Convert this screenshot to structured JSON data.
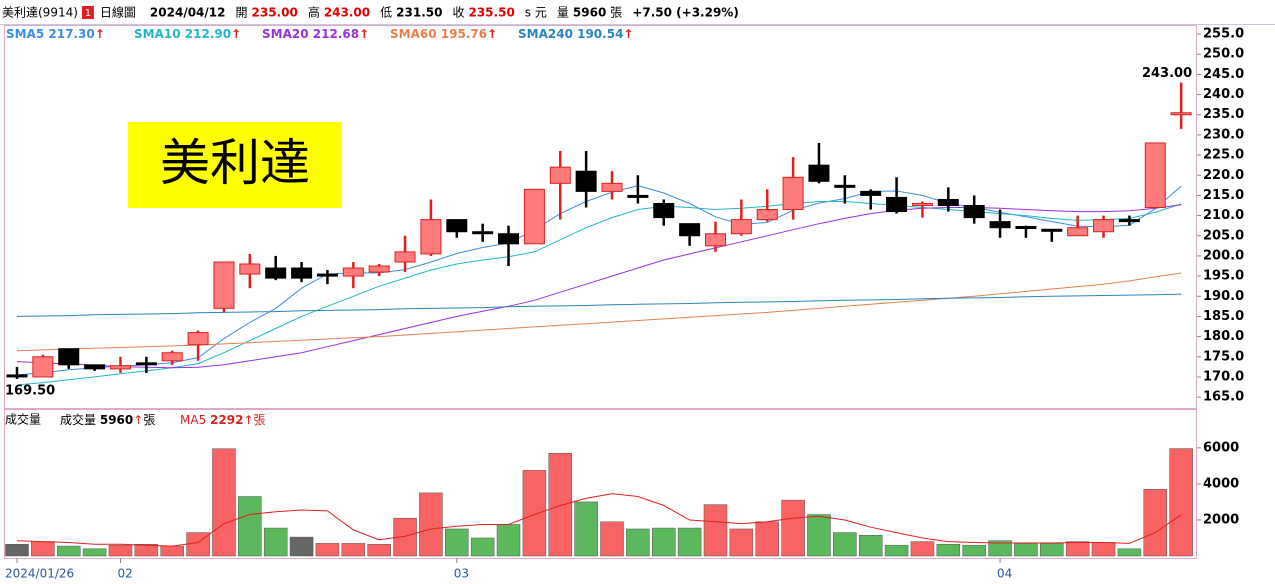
{
  "header": {
    "symbol": "美利達(9914)",
    "badge": "1",
    "view": "日線圖",
    "date": "2024/04/12",
    "fields": [
      {
        "label": "開",
        "value": "235.00",
        "color": "#e00000"
      },
      {
        "label": "高",
        "value": "243.00",
        "color": "#e00000"
      },
      {
        "label": "低",
        "value": "231.50",
        "color": "#000000"
      },
      {
        "label": "收",
        "value": "235.50",
        "color": "#e00000"
      }
    ],
    "unit": "s 元",
    "volume_label": "量",
    "volume": "5960",
    "volume_unit": "張",
    "change": "+7.50 (+3.29%)"
  },
  "stamp": "美利達",
  "chart_data": [
    {
      "type": "candlestick",
      "categories": [
        "2024/01/26",
        null,
        null,
        null,
        "02",
        null,
        null,
        null,
        null,
        null,
        null,
        null,
        null,
        null,
        null,
        null,
        null,
        "03",
        null,
        null,
        null,
        null,
        null,
        null,
        null,
        null,
        null,
        null,
        null,
        null,
        null,
        null,
        null,
        null,
        null,
        null,
        null,
        null,
        "04",
        null,
        null,
        null,
        null,
        null,
        null,
        null
      ],
      "open": [
        170.5,
        170,
        177,
        173,
        172,
        173.5,
        174,
        178,
        187,
        195.5,
        197,
        197,
        195.5,
        195,
        196,
        198.5,
        200.5,
        209,
        206,
        205.5,
        203,
        218,
        221,
        216,
        215,
        213,
        208,
        202.5,
        205.5,
        209,
        211.5,
        222.5,
        217.5,
        216,
        214.5,
        212.5,
        214,
        212.5,
        208.5,
        207.3,
        206.6,
        205,
        206,
        209,
        212,
        235
      ],
      "high": [
        172.5,
        175.5,
        177,
        173,
        175,
        175,
        176.5,
        181.5,
        198.5,
        200.5,
        200,
        198.5,
        196.5,
        198.5,
        198,
        205,
        214,
        209,
        208,
        207.5,
        216.5,
        226,
        226,
        221,
        220,
        214,
        208,
        208.5,
        214,
        216.5,
        224.5,
        228,
        220,
        216.5,
        219.5,
        213.5,
        217,
        215,
        211.5,
        207.5,
        206.6,
        210,
        210,
        210,
        228,
        243
      ],
      "low": [
        169.5,
        170,
        172,
        171.5,
        171,
        171,
        173,
        174,
        186,
        192,
        194,
        193.5,
        193,
        192,
        195,
        196,
        200,
        204.5,
        203.5,
        197.5,
        203,
        209,
        212,
        214,
        213,
        207.5,
        202.5,
        201,
        205,
        208.5,
        209,
        218,
        213,
        211.5,
        210.5,
        209.5,
        211,
        208,
        204.5,
        204.5,
        203.5,
        205,
        204.5,
        207.5,
        212,
        231.5
      ],
      "close": [
        170.5,
        175,
        173,
        172,
        172.8,
        173.5,
        176,
        181,
        198.5,
        198,
        194.5,
        194.5,
        195.5,
        197,
        197.5,
        201,
        209,
        206,
        205.5,
        203,
        216.5,
        222,
        216,
        218,
        214.5,
        209.5,
        205,
        205.5,
        209,
        211.5,
        219.5,
        218.5,
        217,
        215,
        211,
        213,
        212.5,
        209.5,
        207,
        206.8,
        206.5,
        207,
        209,
        208.5,
        228,
        235.5
      ],
      "up_color": "#ff7b7b",
      "up_stroke": "#e02020",
      "down_color": "#000000",
      "series": [
        {
          "name": "SMA5",
          "legend": "217.30",
          "trend": "↑",
          "color": "#3a8ee6",
          "values": [
            170.5,
            171.0,
            171.8,
            172.3,
            172.7,
            173.0,
            173.5,
            174.8,
            179.5,
            183.5,
            187.0,
            192.0,
            195.5,
            195.8,
            195.8,
            196.6,
            198.5,
            200.6,
            202.1,
            203.2,
            206.4,
            210.5,
            213.5,
            215.8,
            217.4,
            215.6,
            213.0,
            209.7,
            207.8,
            208.3,
            211.3,
            213.1,
            214.2,
            216.0,
            216.1,
            215.0,
            213.0,
            212.1,
            210.8,
            209.7,
            208.5,
            207.4,
            207.2,
            207.6,
            211.7,
            217.3
          ]
        },
        {
          "name": "SMA10",
          "legend": "212.90",
          "trend": "↑",
          "color": "#20b8c8",
          "values": [
            168.0,
            168.6,
            169.3,
            170.0,
            170.8,
            171.5,
            172.3,
            173.3,
            176.0,
            179.0,
            182.0,
            185.0,
            187.5,
            190.0,
            192.5,
            194.5,
            196.5,
            198.0,
            199.0,
            199.8,
            201.0,
            204.0,
            207.0,
            209.5,
            211.5,
            212.3,
            212.0,
            211.5,
            211.8,
            212.3,
            213.0,
            213.5,
            213.5,
            213.0,
            212.5,
            212.0,
            211.5,
            211.0,
            210.5,
            210.0,
            209.3,
            208.8,
            209.0,
            209.3,
            210.8,
            212.9
          ]
        },
        {
          "name": "SMA20",
          "legend": "212.68",
          "trend": "↑",
          "color": "#9a30e0",
          "values": [
            173.8,
            173.5,
            173.2,
            172.9,
            172.6,
            172.4,
            172.3,
            172.4,
            173.0,
            174.0,
            175.0,
            176.0,
            177.5,
            179.0,
            180.5,
            182.0,
            183.5,
            185.0,
            186.3,
            187.5,
            189.0,
            191.0,
            193.0,
            195.0,
            197.0,
            199.0,
            200.5,
            202.0,
            203.5,
            205.0,
            206.5,
            208.0,
            209.3,
            210.5,
            211.3,
            211.8,
            212.0,
            212.0,
            211.8,
            211.5,
            211.2,
            211.0,
            211.0,
            211.2,
            211.8,
            212.68
          ]
        },
        {
          "name": "SMA60",
          "legend": "195.76",
          "trend": "↑",
          "color": "#e8804a",
          "values": [
            176.5,
            176.7,
            176.9,
            177.1,
            177.3,
            177.5,
            177.7,
            177.9,
            178.2,
            178.5,
            178.8,
            179.1,
            179.4,
            179.7,
            180.0,
            180.4,
            180.8,
            181.2,
            181.6,
            182.0,
            182.4,
            182.8,
            183.2,
            183.6,
            184.0,
            184.4,
            184.8,
            185.2,
            185.6,
            186.0,
            186.5,
            187.0,
            187.5,
            188.0,
            188.5,
            189.0,
            189.5,
            190.0,
            190.6,
            191.2,
            191.8,
            192.4,
            193.0,
            193.8,
            194.8,
            195.76
          ]
        },
        {
          "name": "SMA240",
          "legend": "190.54",
          "trend": "↑",
          "color": "#2a86c0",
          "values": [
            185.0,
            185.1,
            185.2,
            185.4,
            185.5,
            185.6,
            185.7,
            185.9,
            186.0,
            186.1,
            186.2,
            186.4,
            186.5,
            186.6,
            186.7,
            186.9,
            187.0,
            187.1,
            187.2,
            187.4,
            187.5,
            187.6,
            187.7,
            187.9,
            188.0,
            188.1,
            188.2,
            188.4,
            188.5,
            188.6,
            188.7,
            188.9,
            189.0,
            189.1,
            189.2,
            189.4,
            189.5,
            189.6,
            189.7,
            189.9,
            190.0,
            190.1,
            190.2,
            190.3,
            190.4,
            190.54
          ]
        }
      ],
      "annotations": [
        {
          "value": 243,
          "label": "243.00"
        },
        {
          "value": 169.5,
          "label": "169.50"
        }
      ],
      "ylim": [
        162.3,
        257
      ],
      "yticks": [
        {
          "value": 165,
          "label": "165.0"
        },
        {
          "value": 170,
          "label": "170.0"
        },
        {
          "value": 175,
          "label": "175.0"
        },
        {
          "value": 180,
          "label": "180.0"
        },
        {
          "value": 185,
          "label": "185.0"
        },
        {
          "value": 190,
          "label": "190.0"
        },
        {
          "value": 195,
          "label": "195.0"
        },
        {
          "value": 200,
          "label": "200.0"
        },
        {
          "value": 205,
          "label": "205.0"
        },
        {
          "value": 210,
          "label": "210.0"
        },
        {
          "value": 215,
          "label": "215.0"
        },
        {
          "value": 220,
          "label": "220.0"
        },
        {
          "value": 225,
          "label": "225.0"
        },
        {
          "value": 230,
          "label": "230.0"
        },
        {
          "value": 235,
          "label": "235.0"
        },
        {
          "value": 240,
          "label": "240.0"
        },
        {
          "value": 245,
          "label": "245.0"
        },
        {
          "value": 250,
          "label": "250.0"
        },
        {
          "value": 255,
          "label": "255.0"
        }
      ]
    },
    {
      "type": "bar",
      "title": "成交量",
      "up_color": "#f86464",
      "down_color": "#5cb85c",
      "flat_color": "#666666",
      "series": [
        {
          "name": "成交量",
          "legend": "5960",
          "trend": "↑",
          "unit": "張",
          "color": "#000000",
          "values": [
            650,
            800,
            550,
            400,
            600,
            650,
            550,
            1300,
            5950,
            3300,
            1550,
            1050,
            700,
            700,
            650,
            2100,
            3500,
            1500,
            1000,
            1750,
            4750,
            5700,
            3000,
            1900,
            1500,
            1550,
            1550,
            2850,
            1500,
            1900,
            3100,
            2300,
            1300,
            1150,
            600,
            800,
            650,
            600,
            850,
            700,
            700,
            800,
            750,
            400,
            3700,
            5960
          ]
        },
        {
          "name": "MA5",
          "legend": "2292",
          "trend": "↑",
          "unit": "張",
          "color": "#e02020",
          "values": [
            850,
            800,
            750,
            650,
            650,
            600,
            550,
            750,
            1800,
            2300,
            2450,
            2550,
            2500,
            1450,
            900,
            1100,
            1500,
            1650,
            1750,
            1750,
            2300,
            2800,
            3200,
            3450,
            3300,
            2800,
            2000,
            1900,
            1800,
            1900,
            2100,
            2200,
            2000,
            1600,
            1300,
            1000,
            800,
            750,
            720,
            720,
            720,
            750,
            750,
            700,
            1300,
            2292
          ]
        }
      ],
      "ylim": [
        0,
        8100
      ],
      "yticks": [
        2000,
        4000,
        6000
      ]
    }
  ]
}
